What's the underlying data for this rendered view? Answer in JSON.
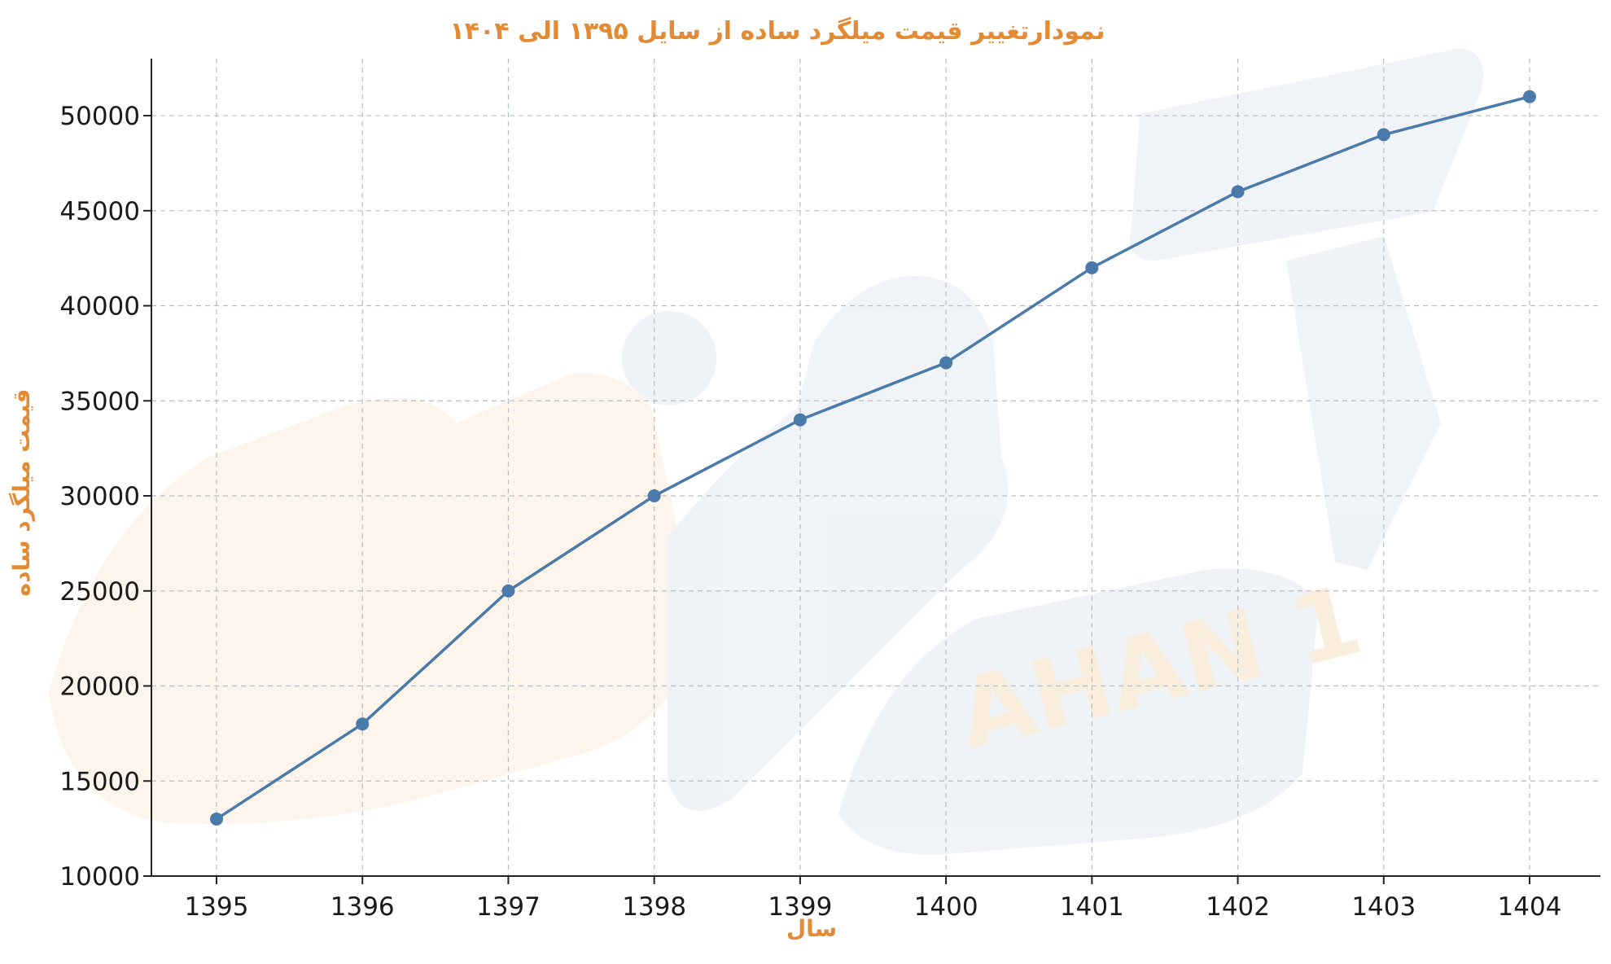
{
  "chart_data": {
    "type": "line",
    "title": "نمودارتغییر قیمت میلگرد ساده از سایل ۱۳۹۵ الی ۱۴۰۴",
    "xlabel": "سال",
    "ylabel": "قیمت میلگرد ساده",
    "categories": [
      "1395",
      "1396",
      "1397",
      "1398",
      "1399",
      "1400",
      "1401",
      "1402",
      "1403",
      "1404"
    ],
    "series": [
      {
        "values": [
          13000,
          18000,
          25000,
          30000,
          34000,
          37000,
          42000,
          46000,
          49000,
          51000
        ]
      }
    ],
    "yticks": [
      "10000",
      "15000",
      "20000",
      "25000",
      "30000",
      "35000",
      "40000",
      "45000",
      "50000"
    ],
    "ylim": [
      10000,
      53000
    ],
    "grid": true,
    "line_color": "#4a7aaa",
    "accent_color": "#e38a35"
  },
  "watermark": {
    "text": "AHAN 1"
  }
}
